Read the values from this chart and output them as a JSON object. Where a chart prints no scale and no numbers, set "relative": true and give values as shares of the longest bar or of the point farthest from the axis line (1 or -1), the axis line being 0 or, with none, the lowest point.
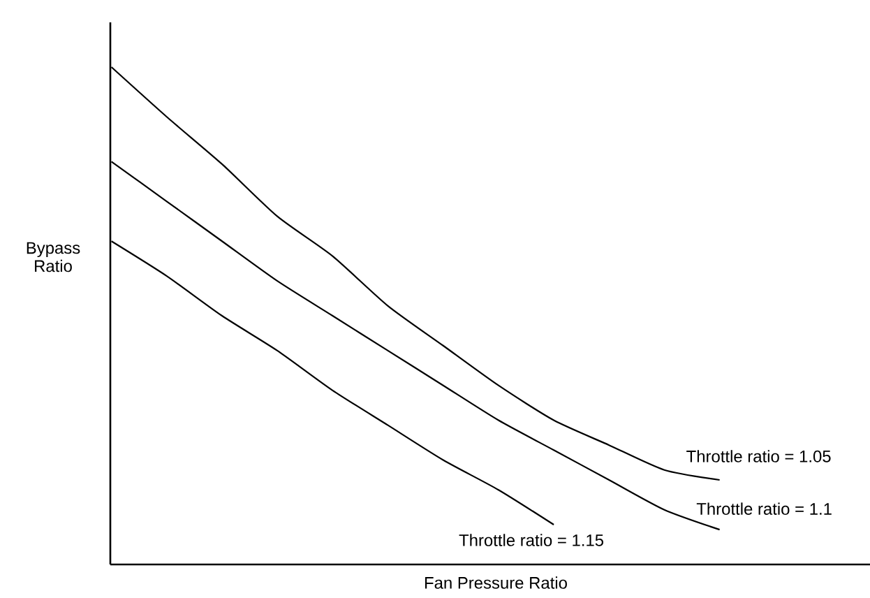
{
  "chart_data": {
    "type": "line",
    "relative": true,
    "xlabel": "Fan Pressure Ratio",
    "ylabel": "Bypass Ratio",
    "marker": "none",
    "line_style": "solid",
    "categories": [
      null,
      null,
      null,
      null,
      null,
      null,
      null,
      null,
      null,
      null,
      null,
      null
    ],
    "series": [
      {
        "name": "Throttle ratio = 1.05",
        "color": "#000000",
        "values": [
          1,
          0.9,
          0.805,
          0.7,
          0.62,
          0.52,
          0.44,
          0.36,
          0.29,
          0.24,
          0.19,
          0.17
        ]
      },
      {
        "name": "Throttle ratio = 1.1",
        "color": "#000000",
        "values": [
          0.81,
          0.73,
          0.65,
          0.57,
          0.5,
          0.43,
          0.36,
          0.29,
          0.23,
          0.17,
          0.11,
          0.07
        ]
      },
      {
        "name": "Throttle ratio = 1.15",
        "color": "#000000",
        "values": [
          0.65,
          0.58,
          0.5,
          0.43,
          0.35,
          0.28,
          0.21,
          0.15,
          0.08,
          null,
          null,
          null
        ]
      }
    ]
  }
}
